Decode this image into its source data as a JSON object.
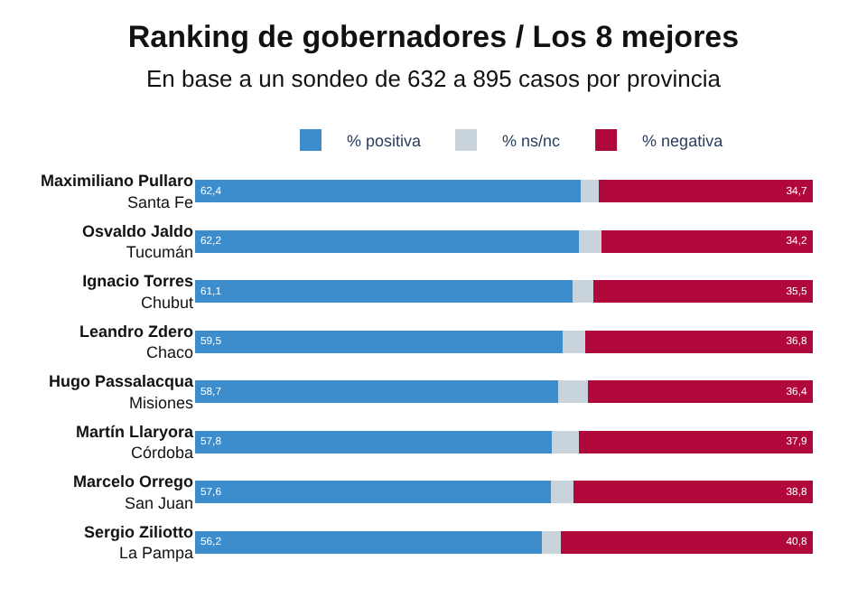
{
  "chart_data": {
    "type": "bar",
    "orientation": "horizontal",
    "stacked": true,
    "title": "Ranking de gobernadores / Los 8 mejores",
    "subtitle": "En base a un sondeo de 632 a 895 casos por provincia",
    "categories": [
      "Maximiliano Pullaro\nSanta Fe",
      "Osvaldo Jaldo\nTucumán",
      "Ignacio Torres\nChubut",
      "Leandro Zdero\nChaco",
      "Hugo Passalacqua\nMisiones",
      "Martín Llaryora\nCórdoba",
      "Marcelo Orrego\nSan Juan",
      "Sergio Ziliotto\nLa Pampa"
    ],
    "series": [
      {
        "name": "% positiva",
        "color": "#3d8ccb",
        "values": [
          62.4,
          62.2,
          61.1,
          59.5,
          58.7,
          57.8,
          57.6,
          56.2
        ],
        "value_labels": [
          "62,4",
          "62,2",
          "61,1",
          "59,5",
          "58,7",
          "57,8",
          "57,6",
          "56,2"
        ]
      },
      {
        "name": "% ns/nc",
        "color": "#c9d3dc",
        "values": [
          2.9,
          3.6,
          3.4,
          3.7,
          4.9,
          4.3,
          3.6,
          3.0
        ]
      },
      {
        "name": "% negativa",
        "color": "#b0083a",
        "values": [
          34.7,
          34.2,
          35.5,
          36.8,
          36.4,
          37.9,
          38.8,
          40.8
        ],
        "value_labels": [
          "34,7",
          "34,2",
          "35,5",
          "36,8",
          "36,4",
          "37,9",
          "38,8",
          "40,8"
        ]
      }
    ],
    "xlim": [
      0,
      100
    ],
    "tick_labels": "y",
    "legend": "top"
  }
}
